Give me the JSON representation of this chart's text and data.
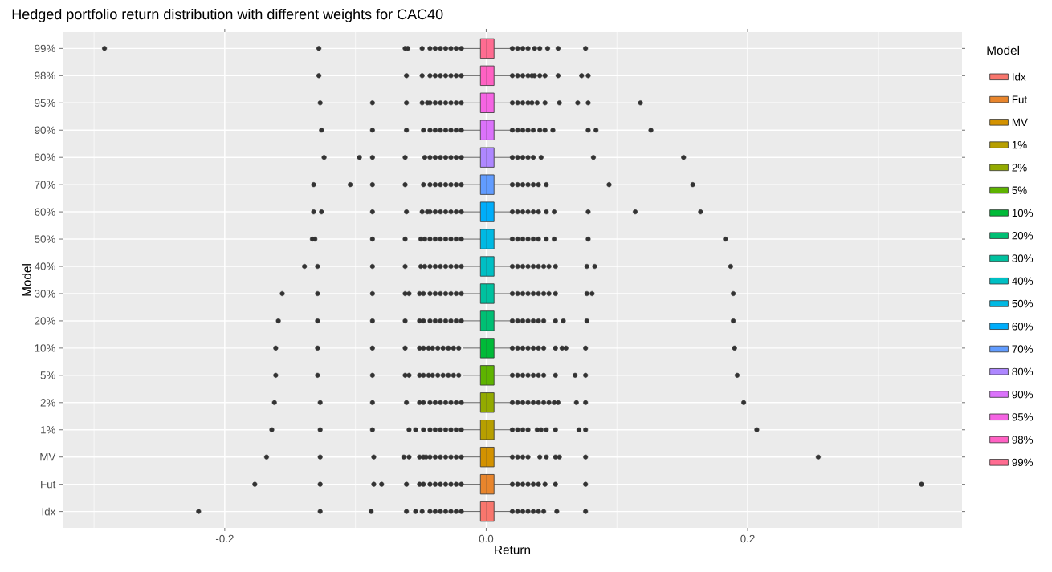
{
  "chart_data": {
    "type": "box",
    "orientation": "horizontal",
    "title": "Hedged portfolio return distribution with different weights for CAC40",
    "xlabel": "Return",
    "ylabel": "Model",
    "legend_title": "Model",
    "legend": "right",
    "grid": true,
    "categories": [
      "99%",
      "98%",
      "95%",
      "90%",
      "80%",
      "70%",
      "60%",
      "50%",
      "40%",
      "30%",
      "20%",
      "10%",
      "5%",
      "2%",
      "1%",
      "MV",
      "Fut",
      "Idx"
    ],
    "xlim": [
      -0.324,
      0.364
    ],
    "xticks": [
      {
        "value": -0.3,
        "label": null
      },
      {
        "value": -0.2,
        "label": "-0.2"
      },
      {
        "value": -0.1,
        "label": null
      },
      {
        "value": 0,
        "label": "0.0"
      },
      {
        "value": 0.1,
        "label": null
      },
      {
        "value": 0.2,
        "label": "0.2"
      },
      {
        "value": 0.3,
        "label": null
      }
    ],
    "series": [
      {
        "name": "Idx",
        "color": "#F8766D",
        "boxes": [
          null,
          null,
          null,
          null,
          null,
          null,
          null,
          null,
          null,
          null,
          null,
          null,
          null,
          null,
          null,
          null,
          null,
          {
            "low": -0.018,
            "q1": -0.0044,
            "median": 0.0005,
            "q3": 0.006,
            "high": 0.0195,
            "outliers": [
              -0.22,
              -0.127,
              -0.088,
              -0.061,
              -0.054,
              -0.049,
              -0.043,
              -0.039,
              -0.035,
              -0.031,
              -0.027,
              -0.023,
              -0.019,
              0.02,
              0.024,
              0.028,
              0.032,
              0.036,
              0.04,
              0.044,
              0.054,
              0.076
            ]
          }
        ]
      },
      {
        "name": "Fut",
        "color": "#E8852C",
        "boxes": [
          null,
          null,
          null,
          null,
          null,
          null,
          null,
          null,
          null,
          null,
          null,
          null,
          null,
          null,
          null,
          null,
          {
            "low": -0.018,
            "q1": -0.0044,
            "median": 0.0005,
            "q3": 0.006,
            "high": 0.0195,
            "outliers": [
              -0.177,
              -0.127,
              -0.086,
              -0.08,
              -0.061,
              -0.051,
              -0.048,
              -0.043,
              -0.039,
              -0.035,
              -0.031,
              -0.027,
              -0.023,
              -0.019,
              0.02,
              0.024,
              0.028,
              0.032,
              0.036,
              0.04,
              0.045,
              0.053,
              0.076,
              0.333
            ]
          },
          null
        ]
      },
      {
        "name": "MV",
        "color": "#D39200",
        "boxes": [
          null,
          null,
          null,
          null,
          null,
          null,
          null,
          null,
          null,
          null,
          null,
          null,
          null,
          null,
          null,
          {
            "low": -0.018,
            "q1": -0.0044,
            "median": 0.0005,
            "q3": 0.006,
            "high": 0.0195,
            "outliers": [
              -0.168,
              -0.127,
              -0.086,
              -0.063,
              -0.059,
              -0.051,
              -0.048,
              -0.046,
              -0.043,
              -0.039,
              -0.035,
              -0.031,
              -0.027,
              -0.023,
              -0.019,
              0.02,
              0.024,
              0.028,
              0.032,
              0.041,
              0.046,
              0.053,
              0.056,
              0.076,
              0.254
            ]
          },
          null,
          null
        ]
      },
      {
        "name": "1%",
        "color": "#B79F00",
        "boxes": [
          null,
          null,
          null,
          null,
          null,
          null,
          null,
          null,
          null,
          null,
          null,
          null,
          null,
          null,
          {
            "low": -0.018,
            "q1": -0.0044,
            "median": 0.0005,
            "q3": 0.006,
            "high": 0.0195,
            "outliers": [
              -0.164,
              -0.127,
              -0.087,
              -0.059,
              -0.054,
              -0.048,
              -0.043,
              -0.039,
              -0.035,
              -0.031,
              -0.027,
              -0.023,
              -0.019,
              0.02,
              0.024,
              0.028,
              0.032,
              0.039,
              0.042,
              0.046,
              0.053,
              0.071,
              0.076,
              0.207
            ]
          },
          null,
          null,
          null
        ]
      },
      {
        "name": "2%",
        "color": "#93AA00",
        "boxes": [
          null,
          null,
          null,
          null,
          null,
          null,
          null,
          null,
          null,
          null,
          null,
          null,
          null,
          {
            "low": -0.018,
            "q1": -0.0044,
            "median": 0.0005,
            "q3": 0.006,
            "high": 0.0195,
            "outliers": [
              -0.162,
              -0.127,
              -0.087,
              -0.061,
              -0.051,
              -0.048,
              -0.043,
              -0.039,
              -0.035,
              -0.031,
              -0.027,
              -0.023,
              -0.019,
              0.02,
              0.024,
              0.028,
              0.032,
              0.036,
              0.04,
              0.044,
              0.048,
              0.052,
              0.055,
              0.069,
              0.076,
              0.197
            ]
          },
          null,
          null,
          null,
          null
        ]
      },
      {
        "name": "5%",
        "color": "#5EB300",
        "boxes": [
          null,
          null,
          null,
          null,
          null,
          null,
          null,
          null,
          null,
          null,
          null,
          null,
          {
            "low": -0.018,
            "q1": -0.0044,
            "median": 0.0005,
            "q3": 0.006,
            "high": 0.0195,
            "outliers": [
              -0.161,
              -0.129,
              -0.087,
              -0.062,
              -0.059,
              -0.051,
              -0.048,
              -0.044,
              -0.041,
              -0.037,
              -0.033,
              -0.029,
              -0.025,
              -0.021,
              0.02,
              0.024,
              0.028,
              0.032,
              0.036,
              0.04,
              0.044,
              0.053,
              0.068,
              0.076,
              0.192
            ]
          },
          null,
          null,
          null,
          null,
          null
        ]
      },
      {
        "name": "10%",
        "color": "#00BA38",
        "boxes": [
          null,
          null,
          null,
          null,
          null,
          null,
          null,
          null,
          null,
          null,
          null,
          {
            "low": -0.018,
            "q1": -0.0044,
            "median": 0.0005,
            "q3": 0.006,
            "high": 0.0195,
            "outliers": [
              -0.161,
              -0.129,
              -0.087,
              -0.062,
              -0.051,
              -0.048,
              -0.044,
              -0.041,
              -0.037,
              -0.033,
              -0.029,
              -0.025,
              -0.021,
              0.02,
              0.024,
              0.028,
              0.032,
              0.036,
              0.04,
              0.044,
              0.053,
              0.058,
              0.061,
              0.076,
              0.19
            ]
          },
          null,
          null,
          null,
          null,
          null,
          null
        ]
      },
      {
        "name": "20%",
        "color": "#00BF74",
        "boxes": [
          null,
          null,
          null,
          null,
          null,
          null,
          null,
          null,
          null,
          null,
          {
            "low": -0.018,
            "q1": -0.0044,
            "median": 0.0005,
            "q3": 0.006,
            "high": 0.0195,
            "outliers": [
              -0.159,
              -0.129,
              -0.087,
              -0.062,
              -0.051,
              -0.048,
              -0.043,
              -0.039,
              -0.035,
              -0.031,
              -0.027,
              -0.023,
              -0.019,
              0.02,
              0.024,
              0.028,
              0.032,
              0.036,
              0.04,
              0.044,
              0.053,
              0.059,
              0.077,
              0.189
            ]
          },
          null,
          null,
          null,
          null,
          null,
          null,
          null
        ]
      },
      {
        "name": "30%",
        "color": "#00C19F",
        "boxes": [
          null,
          null,
          null,
          null,
          null,
          null,
          null,
          null,
          null,
          {
            "low": -0.018,
            "q1": -0.0044,
            "median": 0.0005,
            "q3": 0.006,
            "high": 0.0195,
            "outliers": [
              -0.156,
              -0.129,
              -0.087,
              -0.062,
              -0.059,
              -0.051,
              -0.048,
              -0.043,
              -0.039,
              -0.035,
              -0.031,
              -0.027,
              -0.023,
              -0.019,
              0.02,
              0.024,
              0.028,
              0.032,
              0.036,
              0.04,
              0.044,
              0.048,
              0.053,
              0.077,
              0.081,
              0.189
            ]
          },
          null,
          null,
          null,
          null,
          null,
          null,
          null,
          null
        ]
      },
      {
        "name": "40%",
        "color": "#00BFC4",
        "boxes": [
          null,
          null,
          null,
          null,
          null,
          null,
          null,
          null,
          {
            "low": -0.018,
            "q1": -0.0044,
            "median": 0.0005,
            "q3": 0.006,
            "high": 0.0195,
            "outliers": [
              -0.139,
              -0.129,
              -0.087,
              -0.062,
              -0.05,
              -0.047,
              -0.043,
              -0.039,
              -0.035,
              -0.031,
              -0.027,
              -0.023,
              -0.019,
              0.02,
              0.024,
              0.028,
              0.032,
              0.036,
              0.04,
              0.044,
              0.048,
              0.053,
              0.077,
              0.083,
              0.187
            ]
          },
          null,
          null,
          null,
          null,
          null,
          null,
          null,
          null,
          null
        ]
      },
      {
        "name": "50%",
        "color": "#00B9E3",
        "boxes": [
          null,
          null,
          null,
          null,
          null,
          null,
          null,
          {
            "low": -0.018,
            "q1": -0.0044,
            "median": 0.0005,
            "q3": 0.006,
            "high": 0.0195,
            "outliers": [
              -0.133,
              -0.131,
              -0.087,
              -0.062,
              -0.05,
              -0.047,
              -0.043,
              -0.039,
              -0.035,
              -0.031,
              -0.027,
              -0.023,
              -0.019,
              0.02,
              0.024,
              0.028,
              0.032,
              0.036,
              0.04,
              0.046,
              0.052,
              0.078,
              0.183
            ]
          },
          null,
          null,
          null,
          null,
          null,
          null,
          null,
          null,
          null,
          null
        ]
      },
      {
        "name": "60%",
        "color": "#00ADFA",
        "boxes": [
          null,
          null,
          null,
          null,
          null,
          null,
          {
            "low": -0.018,
            "q1": -0.0044,
            "median": 0.0005,
            "q3": 0.006,
            "high": 0.0195,
            "outliers": [
              -0.132,
              -0.126,
              -0.087,
              -0.061,
              -0.049,
              -0.045,
              -0.043,
              -0.039,
              -0.035,
              -0.031,
              -0.027,
              -0.023,
              -0.019,
              0.02,
              0.024,
              0.028,
              0.032,
              0.036,
              0.04,
              0.046,
              0.052,
              0.078,
              0.114,
              0.164
            ]
          },
          null,
          null,
          null,
          null,
          null,
          null,
          null,
          null,
          null,
          null,
          null
        ]
      },
      {
        "name": "70%",
        "color": "#619CFF",
        "boxes": [
          null,
          null,
          null,
          null,
          null,
          {
            "low": -0.018,
            "q1": -0.0044,
            "median": 0.0005,
            "q3": 0.006,
            "high": 0.0195,
            "outliers": [
              -0.132,
              -0.104,
              -0.087,
              -0.062,
              -0.048,
              -0.043,
              -0.039,
              -0.035,
              -0.031,
              -0.027,
              -0.023,
              -0.019,
              0.02,
              0.024,
              0.028,
              0.032,
              0.036,
              0.04,
              0.046,
              0.094,
              0.158
            ]
          },
          null,
          null,
          null,
          null,
          null,
          null,
          null,
          null,
          null,
          null,
          null,
          null
        ]
      },
      {
        "name": "80%",
        "color": "#AE87FF",
        "boxes": [
          null,
          null,
          null,
          null,
          {
            "low": -0.018,
            "q1": -0.0044,
            "median": 0.0005,
            "q3": 0.006,
            "high": 0.0195,
            "outliers": [
              -0.124,
              -0.097,
              -0.087,
              -0.062,
              -0.047,
              -0.043,
              -0.039,
              -0.035,
              -0.031,
              -0.027,
              -0.023,
              -0.019,
              0.02,
              0.024,
              0.028,
              0.032,
              0.036,
              0.042,
              0.082,
              0.151
            ]
          },
          null,
          null,
          null,
          null,
          null,
          null,
          null,
          null,
          null,
          null,
          null,
          null,
          null
        ]
      },
      {
        "name": "90%",
        "color": "#DB72FB",
        "boxes": [
          null,
          null,
          null,
          {
            "low": -0.018,
            "q1": -0.0044,
            "median": 0.0005,
            "q3": 0.006,
            "high": 0.0195,
            "outliers": [
              -0.126,
              -0.087,
              -0.061,
              -0.048,
              -0.043,
              -0.039,
              -0.035,
              -0.031,
              -0.027,
              -0.023,
              -0.019,
              0.02,
              0.024,
              0.028,
              0.032,
              0.036,
              0.041,
              0.045,
              0.051,
              0.078,
              0.084,
              0.126
            ]
          },
          null,
          null,
          null,
          null,
          null,
          null,
          null,
          null,
          null,
          null,
          null,
          null,
          null,
          null
        ]
      },
      {
        "name": "95%",
        "color": "#F564E3",
        "boxes": [
          null,
          null,
          {
            "low": -0.018,
            "q1": -0.0044,
            "median": 0.0005,
            "q3": 0.006,
            "high": 0.0195,
            "outliers": [
              -0.127,
              -0.087,
              -0.061,
              -0.049,
              -0.045,
              -0.043,
              -0.039,
              -0.035,
              -0.031,
              -0.027,
              -0.023,
              -0.019,
              0.02,
              0.024,
              0.028,
              0.032,
              0.035,
              0.039,
              0.045,
              0.056,
              0.07,
              0.078,
              0.118
            ]
          },
          null,
          null,
          null,
          null,
          null,
          null,
          null,
          null,
          null,
          null,
          null,
          null,
          null,
          null,
          null
        ]
      },
      {
        "name": "98%",
        "color": "#FF61C3",
        "boxes": [
          null,
          {
            "low": -0.018,
            "q1": -0.0044,
            "median": 0.0005,
            "q3": 0.006,
            "high": 0.0195,
            "outliers": [
              -0.128,
              -0.061,
              -0.049,
              -0.043,
              -0.039,
              -0.035,
              -0.031,
              -0.027,
              -0.023,
              -0.019,
              0.02,
              0.024,
              0.028,
              0.032,
              0.035,
              0.037,
              0.041,
              0.045,
              0.055,
              0.073,
              0.078
            ]
          },
          null,
          null,
          null,
          null,
          null,
          null,
          null,
          null,
          null,
          null,
          null,
          null,
          null,
          null,
          null,
          null
        ]
      },
      {
        "name": "99%",
        "color": "#FF6C91",
        "boxes": [
          {
            "low": -0.018,
            "q1": -0.0044,
            "median": 0.0005,
            "q3": 0.006,
            "high": 0.0195,
            "outliers": [
              -0.292,
              -0.128,
              -0.062,
              -0.06,
              -0.049,
              -0.043,
              -0.039,
              -0.035,
              -0.031,
              -0.027,
              -0.023,
              -0.019,
              0.02,
              0.024,
              0.028,
              0.032,
              0.037,
              0.041,
              0.047,
              0.055,
              0.076
            ]
          },
          null,
          null,
          null,
          null,
          null,
          null,
          null,
          null,
          null,
          null,
          null,
          null,
          null,
          null,
          null,
          null,
          null
        ]
      }
    ]
  }
}
